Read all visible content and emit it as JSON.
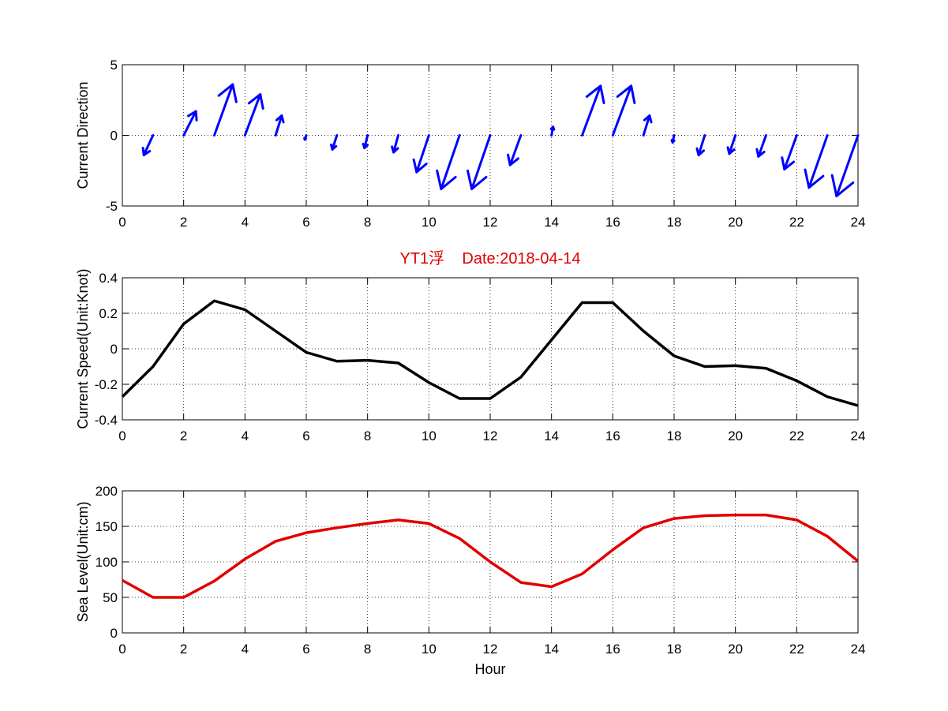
{
  "chart_data": [
    {
      "type": "quiver",
      "ylabel": "Current Direction",
      "xlim": [
        0,
        24
      ],
      "ylim": [
        -5,
        5
      ],
      "xticks": [
        0,
        2,
        4,
        6,
        8,
        10,
        12,
        14,
        16,
        18,
        20,
        22,
        24
      ],
      "yticks": [
        -5,
        0,
        5
      ],
      "grid": true,
      "color": "#0000ff",
      "vectors": [
        {
          "x": 1,
          "u": -0.3,
          "v": -1.4
        },
        {
          "x": 2,
          "u": 0.4,
          "v": 1.7
        },
        {
          "x": 3,
          "u": 0.6,
          "v": 3.6
        },
        {
          "x": 4,
          "u": 0.5,
          "v": 2.9
        },
        {
          "x": 5,
          "u": 0.2,
          "v": 1.4
        },
        {
          "x": 6,
          "u": -0.05,
          "v": -0.3
        },
        {
          "x": 7,
          "u": -0.15,
          "v": -1.0
        },
        {
          "x": 8,
          "u": -0.1,
          "v": -0.9
        },
        {
          "x": 9,
          "u": -0.15,
          "v": -1.2
        },
        {
          "x": 10,
          "u": -0.4,
          "v": -2.6
        },
        {
          "x": 11,
          "u": -0.6,
          "v": -3.8
        },
        {
          "x": 12,
          "u": -0.6,
          "v": -3.8
        },
        {
          "x": 13,
          "u": -0.35,
          "v": -2.1
        },
        {
          "x": 14,
          "u": 0.05,
          "v": 0.6
        },
        {
          "x": 15,
          "u": 0.6,
          "v": 3.5
        },
        {
          "x": 16,
          "u": 0.6,
          "v": 3.5
        },
        {
          "x": 17,
          "u": 0.2,
          "v": 1.4
        },
        {
          "x": 18,
          "u": -0.05,
          "v": -0.5
        },
        {
          "x": 19,
          "u": -0.2,
          "v": -1.4
        },
        {
          "x": 20,
          "u": -0.2,
          "v": -1.3
        },
        {
          "x": 21,
          "u": -0.25,
          "v": -1.5
        },
        {
          "x": 22,
          "u": -0.4,
          "v": -2.4
        },
        {
          "x": 23,
          "u": -0.6,
          "v": -3.7
        },
        {
          "x": 24,
          "u": -0.7,
          "v": -4.3
        }
      ]
    },
    {
      "type": "line",
      "title": "YT1浮    Date:2018-04-14",
      "title_color": "#e00000",
      "ylabel": "Current Speed(Unit:Knot)",
      "xlim": [
        0,
        24
      ],
      "ylim": [
        -0.4,
        0.4
      ],
      "xticks": [
        0,
        2,
        4,
        6,
        8,
        10,
        12,
        14,
        16,
        18,
        20,
        22,
        24
      ],
      "yticks": [
        -0.4,
        -0.2,
        0,
        0.2,
        0.4
      ],
      "grid": true,
      "series": [
        {
          "color": "#000000",
          "x": [
            0,
            1,
            2,
            3,
            4,
            5,
            6,
            7,
            8,
            9,
            10,
            11,
            12,
            13,
            14,
            15,
            16,
            17,
            18,
            19,
            20,
            21,
            22,
            23,
            24
          ],
          "y": [
            -0.27,
            -0.1,
            0.14,
            0.27,
            0.22,
            0.1,
            -0.02,
            -0.07,
            -0.065,
            -0.08,
            -0.19,
            -0.28,
            -0.28,
            -0.16,
            0.05,
            0.26,
            0.26,
            0.1,
            -0.04,
            -0.1,
            -0.095,
            -0.11,
            -0.18,
            -0.27,
            -0.32
          ]
        }
      ]
    },
    {
      "type": "line",
      "ylabel": "Sea Level(Unit:cm)",
      "xlabel": "Hour",
      "xlim": [
        0,
        24
      ],
      "ylim": [
        0,
        200
      ],
      "xticks": [
        0,
        2,
        4,
        6,
        8,
        10,
        12,
        14,
        16,
        18,
        20,
        22,
        24
      ],
      "yticks": [
        0,
        50,
        100,
        150,
        200
      ],
      "grid": true,
      "series": [
        {
          "color": "#e00000",
          "x": [
            0,
            1,
            2,
            3,
            4,
            5,
            6,
            7,
            8,
            9,
            10,
            11,
            12,
            13,
            14,
            15,
            16,
            17,
            18,
            19,
            20,
            21,
            22,
            23,
            24
          ],
          "y": [
            74,
            50,
            50,
            73,
            104,
            129,
            141,
            148,
            154,
            159,
            154,
            133,
            100,
            71,
            65,
            83,
            117,
            148,
            161,
            165,
            166,
            166,
            159,
            136,
            101
          ]
        }
      ]
    }
  ]
}
